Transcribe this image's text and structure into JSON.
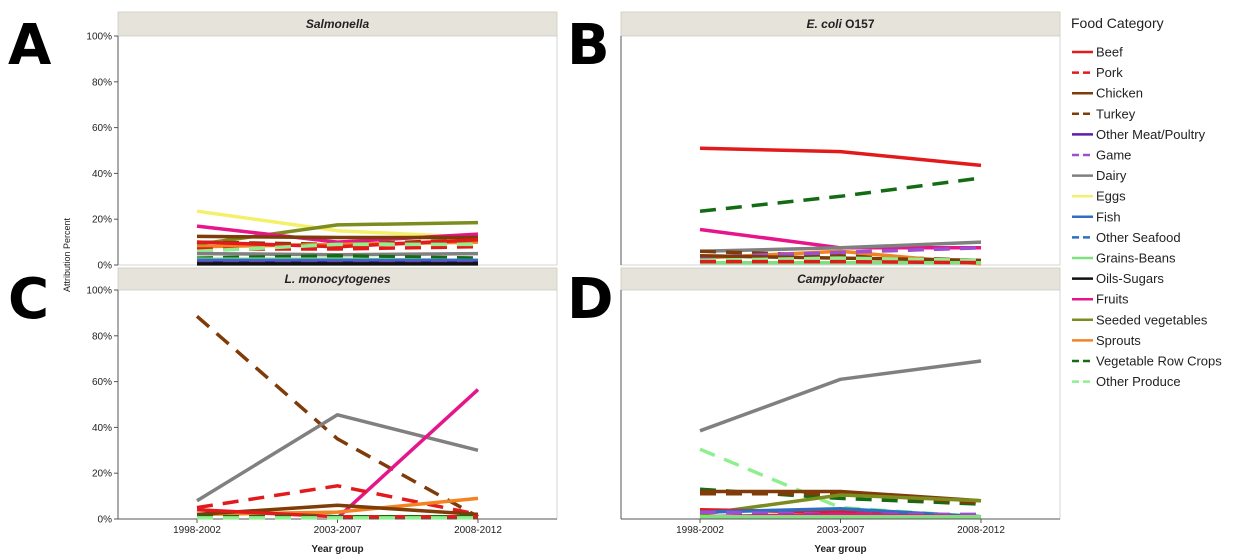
{
  "chart_data": {
    "type": "line",
    "x_label": "Year group",
    "y_label": "Attribution Percent",
    "x": [
      "1998-2002",
      "2003-2007",
      "2008-2012"
    ],
    "ylim": [
      0,
      100
    ],
    "yticks": [
      "0%",
      "20%",
      "40%",
      "60%",
      "80%",
      "100%"
    ],
    "grid": false,
    "legend": {
      "title": "Food Category",
      "placement": "right",
      "entries": [
        {
          "name": "Beef",
          "color": "#e31a1c",
          "dash": false
        },
        {
          "name": "Pork",
          "color": "#e31a1c",
          "dash": true
        },
        {
          "name": "Chicken",
          "color": "#7f3b08",
          "dash": false
        },
        {
          "name": "Turkey",
          "color": "#7f3b08",
          "dash": true
        },
        {
          "name": "Other Meat/Poultry",
          "color": "#5b1fa8",
          "dash": false
        },
        {
          "name": "Game",
          "color": "#9c4fd0",
          "dash": true
        },
        {
          "name": "Dairy",
          "color": "#808080",
          "dash": false
        },
        {
          "name": "Eggs",
          "color": "#f5f06a",
          "dash": false
        },
        {
          "name": "Fish",
          "color": "#2f6fc2",
          "dash": false
        },
        {
          "name": "Other Seafood",
          "color": "#2f6fc2",
          "dash": true
        },
        {
          "name": "Grains-Beans",
          "color": "#7fe07f",
          "dash": false
        },
        {
          "name": "Oils-Sugars",
          "color": "#111111",
          "dash": false
        },
        {
          "name": "Fruits",
          "color": "#e6158a",
          "dash": false
        },
        {
          "name": "Seeded vegetables",
          "color": "#7d8c1e",
          "dash": false
        },
        {
          "name": "Sprouts",
          "color": "#f28322",
          "dash": false
        },
        {
          "name": "Vegetable Row Crops",
          "color": "#136b13",
          "dash": true
        },
        {
          "name": "Other Produce",
          "color": "#8fef8f",
          "dash": true
        }
      ]
    },
    "panels": [
      {
        "letter": "A",
        "pathogen": "Salmonella",
        "pathogen_suffix": "",
        "show_xaxis": false,
        "series": [
          {
            "name": "Eggs",
            "values": [
              23.5,
              15,
              12
            ]
          },
          {
            "name": "Seeded vegetables",
            "values": [
              9,
              17.5,
              18.5
            ]
          },
          {
            "name": "Fruits",
            "values": [
              17,
              10,
              13.5
            ]
          },
          {
            "name": "Chicken",
            "values": [
              12.5,
              12,
              12
            ]
          },
          {
            "name": "Turkey",
            "values": [
              10,
              9,
              11
            ]
          },
          {
            "name": "Sprouts",
            "values": [
              8,
              9,
              10
            ]
          },
          {
            "name": "Beef",
            "values": [
              10,
              8,
              11
            ]
          },
          {
            "name": "Pork",
            "values": [
              7,
              7,
              8
            ]
          },
          {
            "name": "Other Produce",
            "values": [
              6,
              9,
              9
            ]
          },
          {
            "name": "Dairy",
            "values": [
              5,
              4.5,
              5
            ]
          },
          {
            "name": "Vegetable Row Crops",
            "values": [
              3,
              4,
              3
            ]
          },
          {
            "name": "Grains-Beans",
            "values": [
              2.5,
              2.5,
              2
            ]
          },
          {
            "name": "Fish",
            "values": [
              2,
              2,
              2
            ]
          },
          {
            "name": "Other Seafood",
            "values": [
              2,
              1.5,
              1.5
            ]
          },
          {
            "name": "Other Meat/Poultry",
            "values": [
              1,
              1,
              1
            ]
          },
          {
            "name": "Game",
            "values": [
              0.8,
              0.8,
              0.8
            ]
          },
          {
            "name": "Oils-Sugars",
            "values": [
              0.5,
              0.5,
              0.5
            ]
          }
        ]
      },
      {
        "letter": "B",
        "pathogen": "E. coli",
        "pathogen_suffix": " O157",
        "show_xaxis": false,
        "series": [
          {
            "name": "Beef",
            "values": [
              51,
              49.5,
              43.5
            ]
          },
          {
            "name": "Vegetable Row Crops",
            "values": [
              23.5,
              30,
              38
            ]
          },
          {
            "name": "Fruits",
            "values": [
              15.5,
              7.5,
              7.5
            ]
          },
          {
            "name": "Dairy",
            "values": [
              6,
              7.5,
              10
            ]
          },
          {
            "name": "Turkey",
            "values": [
              6,
              4,
              2
            ]
          },
          {
            "name": "Sprouts",
            "values": [
              3,
              6,
              0.5
            ]
          },
          {
            "name": "Game",
            "values": [
              3.5,
              5.5,
              7.5
            ]
          },
          {
            "name": "Chicken",
            "values": [
              4,
              3,
              2
            ]
          },
          {
            "name": "Other Produce",
            "values": [
              2,
              3,
              2
            ]
          },
          {
            "name": "Grains-Beans",
            "values": [
              1,
              1,
              1
            ]
          },
          {
            "name": "Pork",
            "values": [
              1.5,
              1.5,
              1
            ]
          }
        ]
      },
      {
        "letter": "C",
        "pathogen": "L. monocytogenes",
        "pathogen_suffix": "",
        "show_xaxis": true,
        "series": [
          {
            "name": "Turkey",
            "values": [
              88.5,
              35,
              1
            ]
          },
          {
            "name": "Dairy",
            "values": [
              8,
              45.5,
              30
            ]
          },
          {
            "name": "Fruits",
            "values": [
              null,
              0.5,
              56.5
            ]
          },
          {
            "name": "Pork",
            "values": [
              5,
              14.5,
              2
            ]
          },
          {
            "name": "Sprouts",
            "values": [
              2,
              3,
              9
            ]
          },
          {
            "name": "Chicken",
            "values": [
              2,
              6,
              2
            ]
          },
          {
            "name": "Beef",
            "values": [
              4,
              1,
              1
            ]
          },
          {
            "name": "Vegetable Row Crops",
            "values": [
              1,
              1,
              1
            ]
          },
          {
            "name": "Other Produce",
            "values": [
              0.5,
              0.5,
              0.5
            ]
          }
        ]
      },
      {
        "letter": "D",
        "pathogen": "Campylobacter",
        "pathogen_suffix": "",
        "show_xaxis": true,
        "series": [
          {
            "name": "Dairy",
            "values": [
              38.5,
              61,
              69
            ]
          },
          {
            "name": "Other Produce",
            "values": [
              30.5,
              5,
              1
            ]
          },
          {
            "name": "Vegetable Row Crops",
            "values": [
              13,
              9,
              6.5
            ]
          },
          {
            "name": "Chicken",
            "values": [
              12,
              12,
              8
            ]
          },
          {
            "name": "Turkey",
            "values": [
              11,
              11,
              7
            ]
          },
          {
            "name": "Seeded vegetables",
            "values": [
              2,
              10.5,
              8
            ]
          },
          {
            "name": "Beef",
            "values": [
              4,
              3,
              1
            ]
          },
          {
            "name": "Fish",
            "values": [
              3,
              4.5,
              1
            ]
          },
          {
            "name": "Game",
            "values": [
              3,
              2,
              2
            ]
          },
          {
            "name": "Fruits",
            "values": [
              1,
              2,
              1
            ]
          },
          {
            "name": "Grains-Beans",
            "values": [
              1,
              1,
              1
            ]
          }
        ]
      }
    ]
  }
}
